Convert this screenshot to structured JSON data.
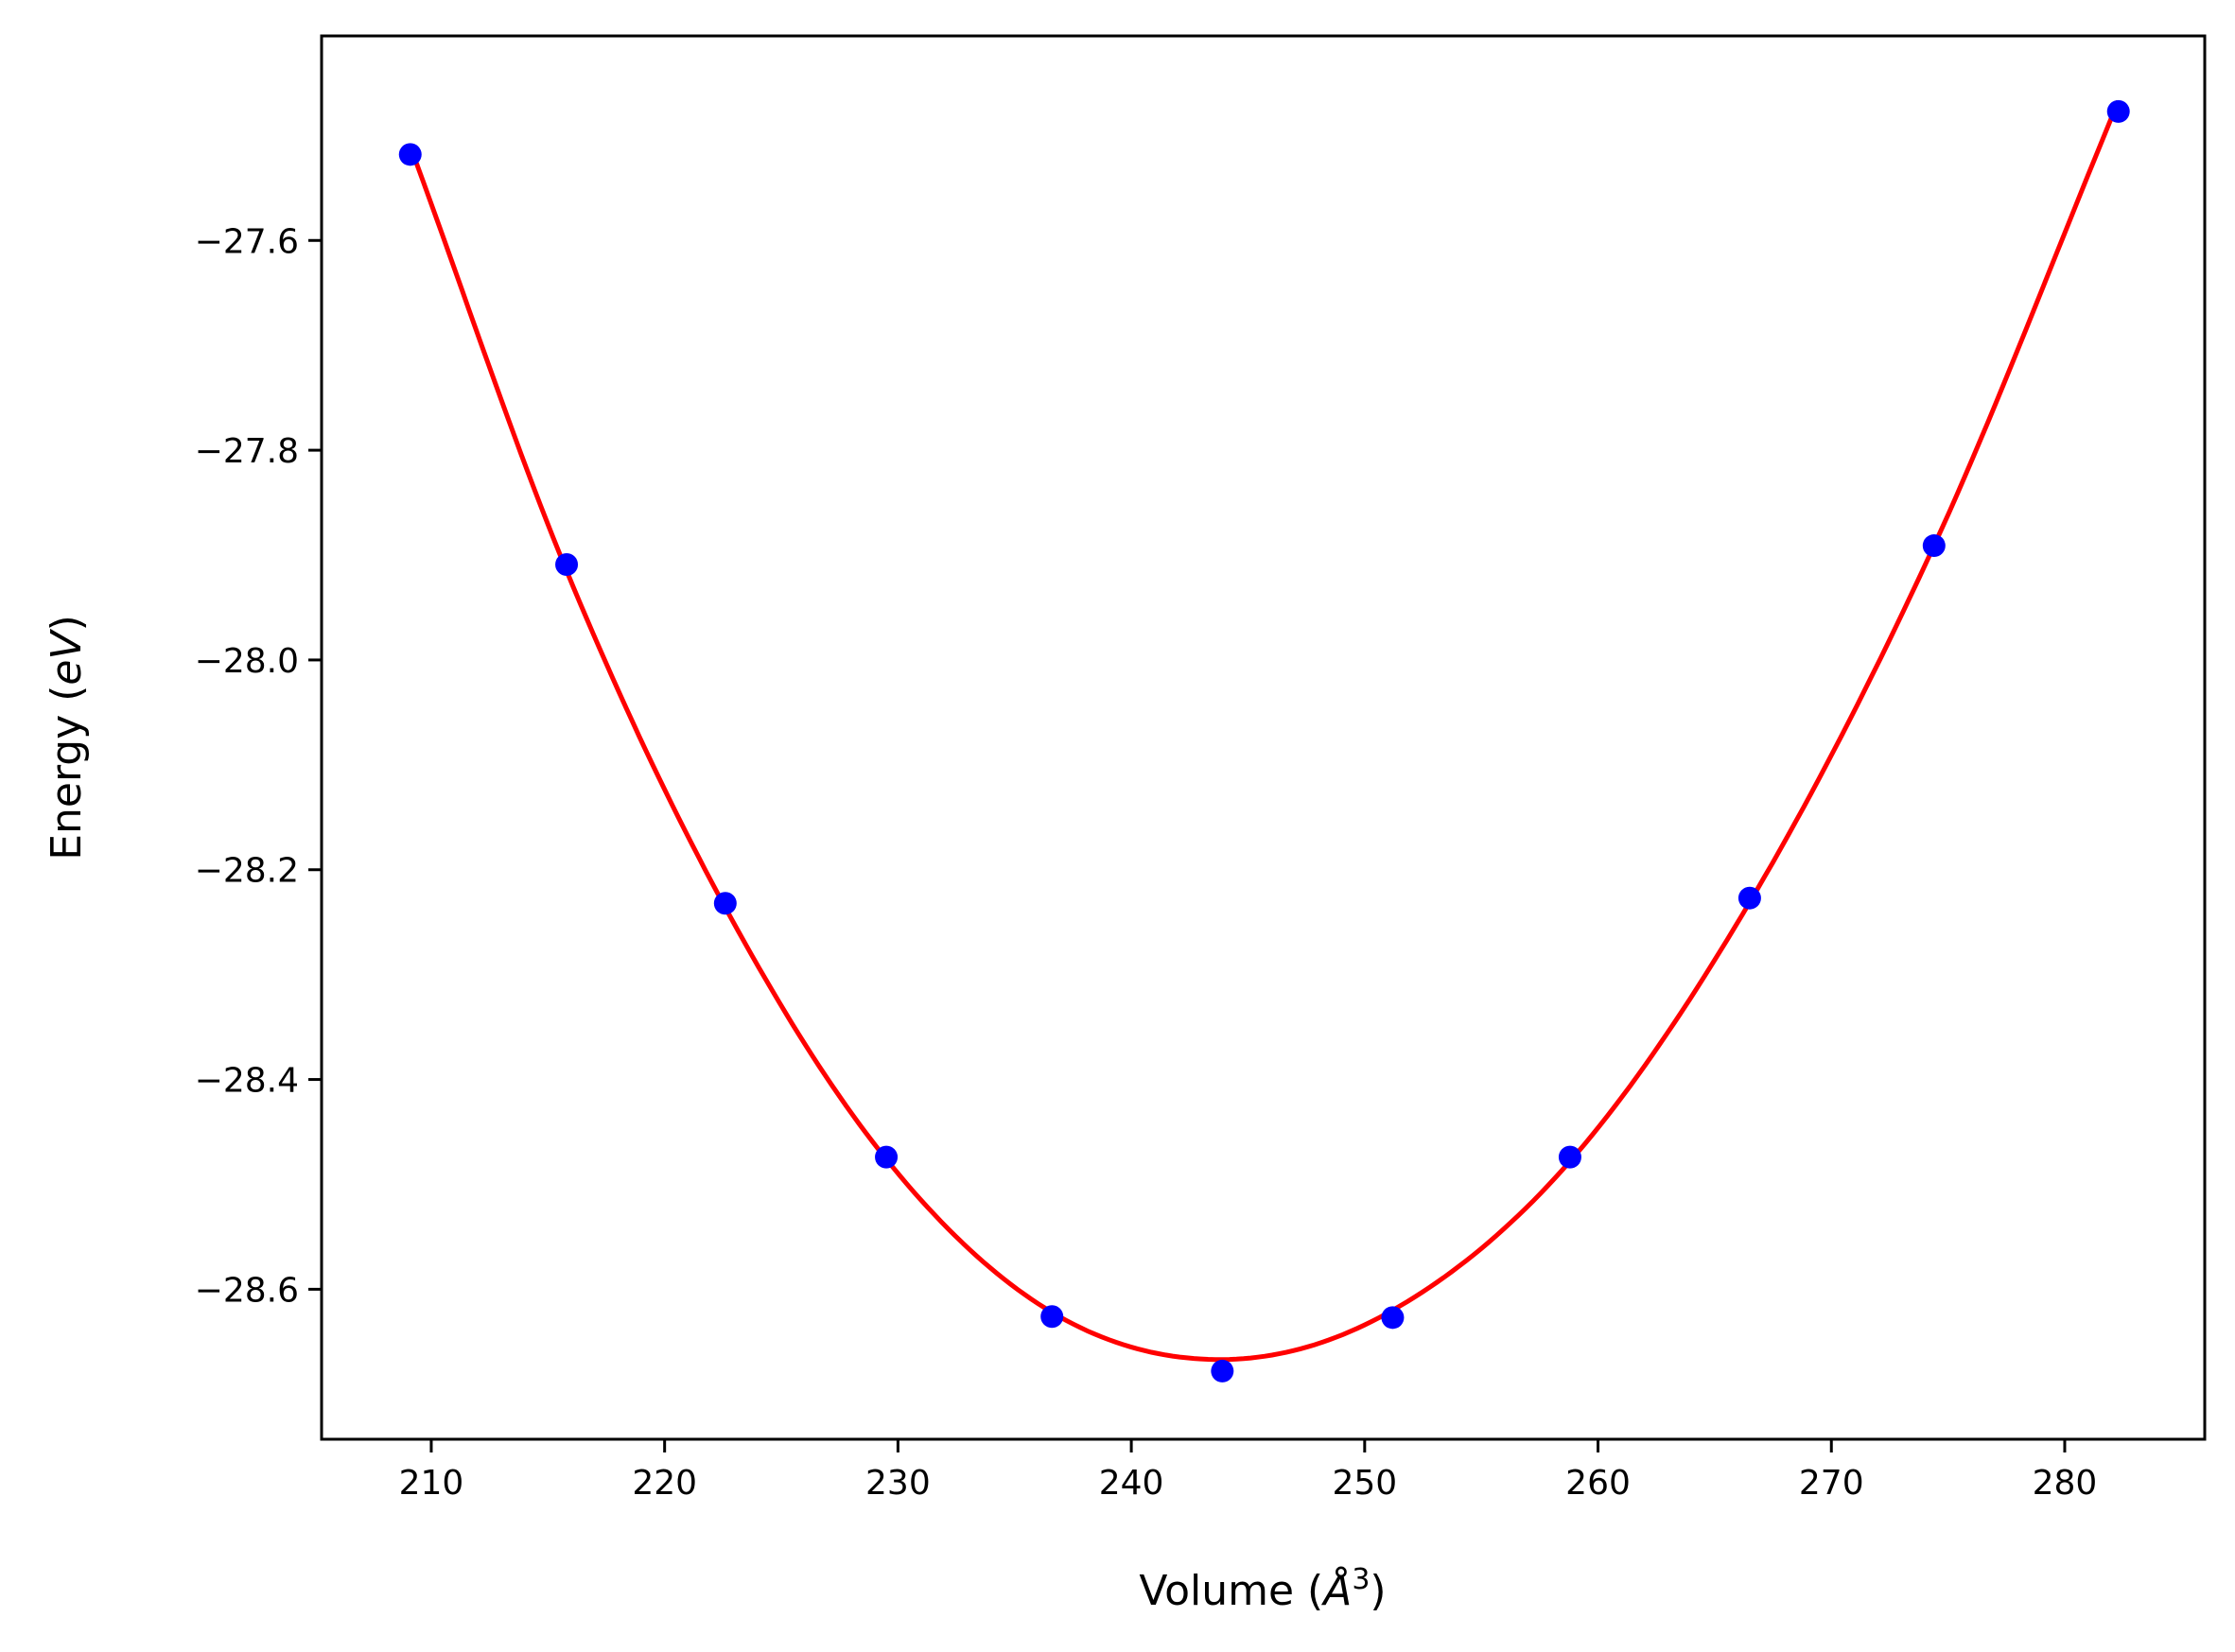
{
  "chart_data": {
    "type": "scatter",
    "xlabel": {
      "prefix": "Volume (",
      "symbol": "Å",
      "sup": "3",
      "suffix": ")"
    },
    "ylabel": {
      "prefix": "Energy (",
      "symbol": "eV",
      "suffix": ")"
    },
    "xlim": [
      205.3,
      286.0
    ],
    "ylim": [
      -28.743,
      -27.405
    ],
    "x_ticks": [
      210,
      220,
      230,
      240,
      250,
      260,
      270,
      280
    ],
    "y_ticks": [
      -28.6,
      -28.4,
      -28.2,
      -28.0,
      -27.8,
      -27.6
    ],
    "grid": false,
    "legend": "none",
    "series": [
      {
        "kind": "points",
        "color": "#0000ff",
        "x": [
          209.1,
          215.8,
          222.6,
          229.5,
          236.6,
          243.9,
          251.2,
          258.8,
          266.5,
          274.4,
          282.3
        ],
        "y": [
          -27.518,
          -27.909,
          -28.232,
          -28.474,
          -28.626,
          -28.678,
          -28.627,
          -28.474,
          -28.227,
          -27.891,
          -27.477
        ]
      },
      {
        "kind": "fit-line",
        "color": "#ff0000",
        "x": [
          209.1,
          215.8,
          222.6,
          229.5,
          236.6,
          243.9,
          251.2,
          258.8,
          266.5,
          274.4,
          282.3
        ],
        "y": [
          -27.51,
          -27.915,
          -28.236,
          -28.476,
          -28.622,
          -28.667,
          -28.62,
          -28.478,
          -28.231,
          -27.891,
          -27.467
        ]
      }
    ]
  }
}
